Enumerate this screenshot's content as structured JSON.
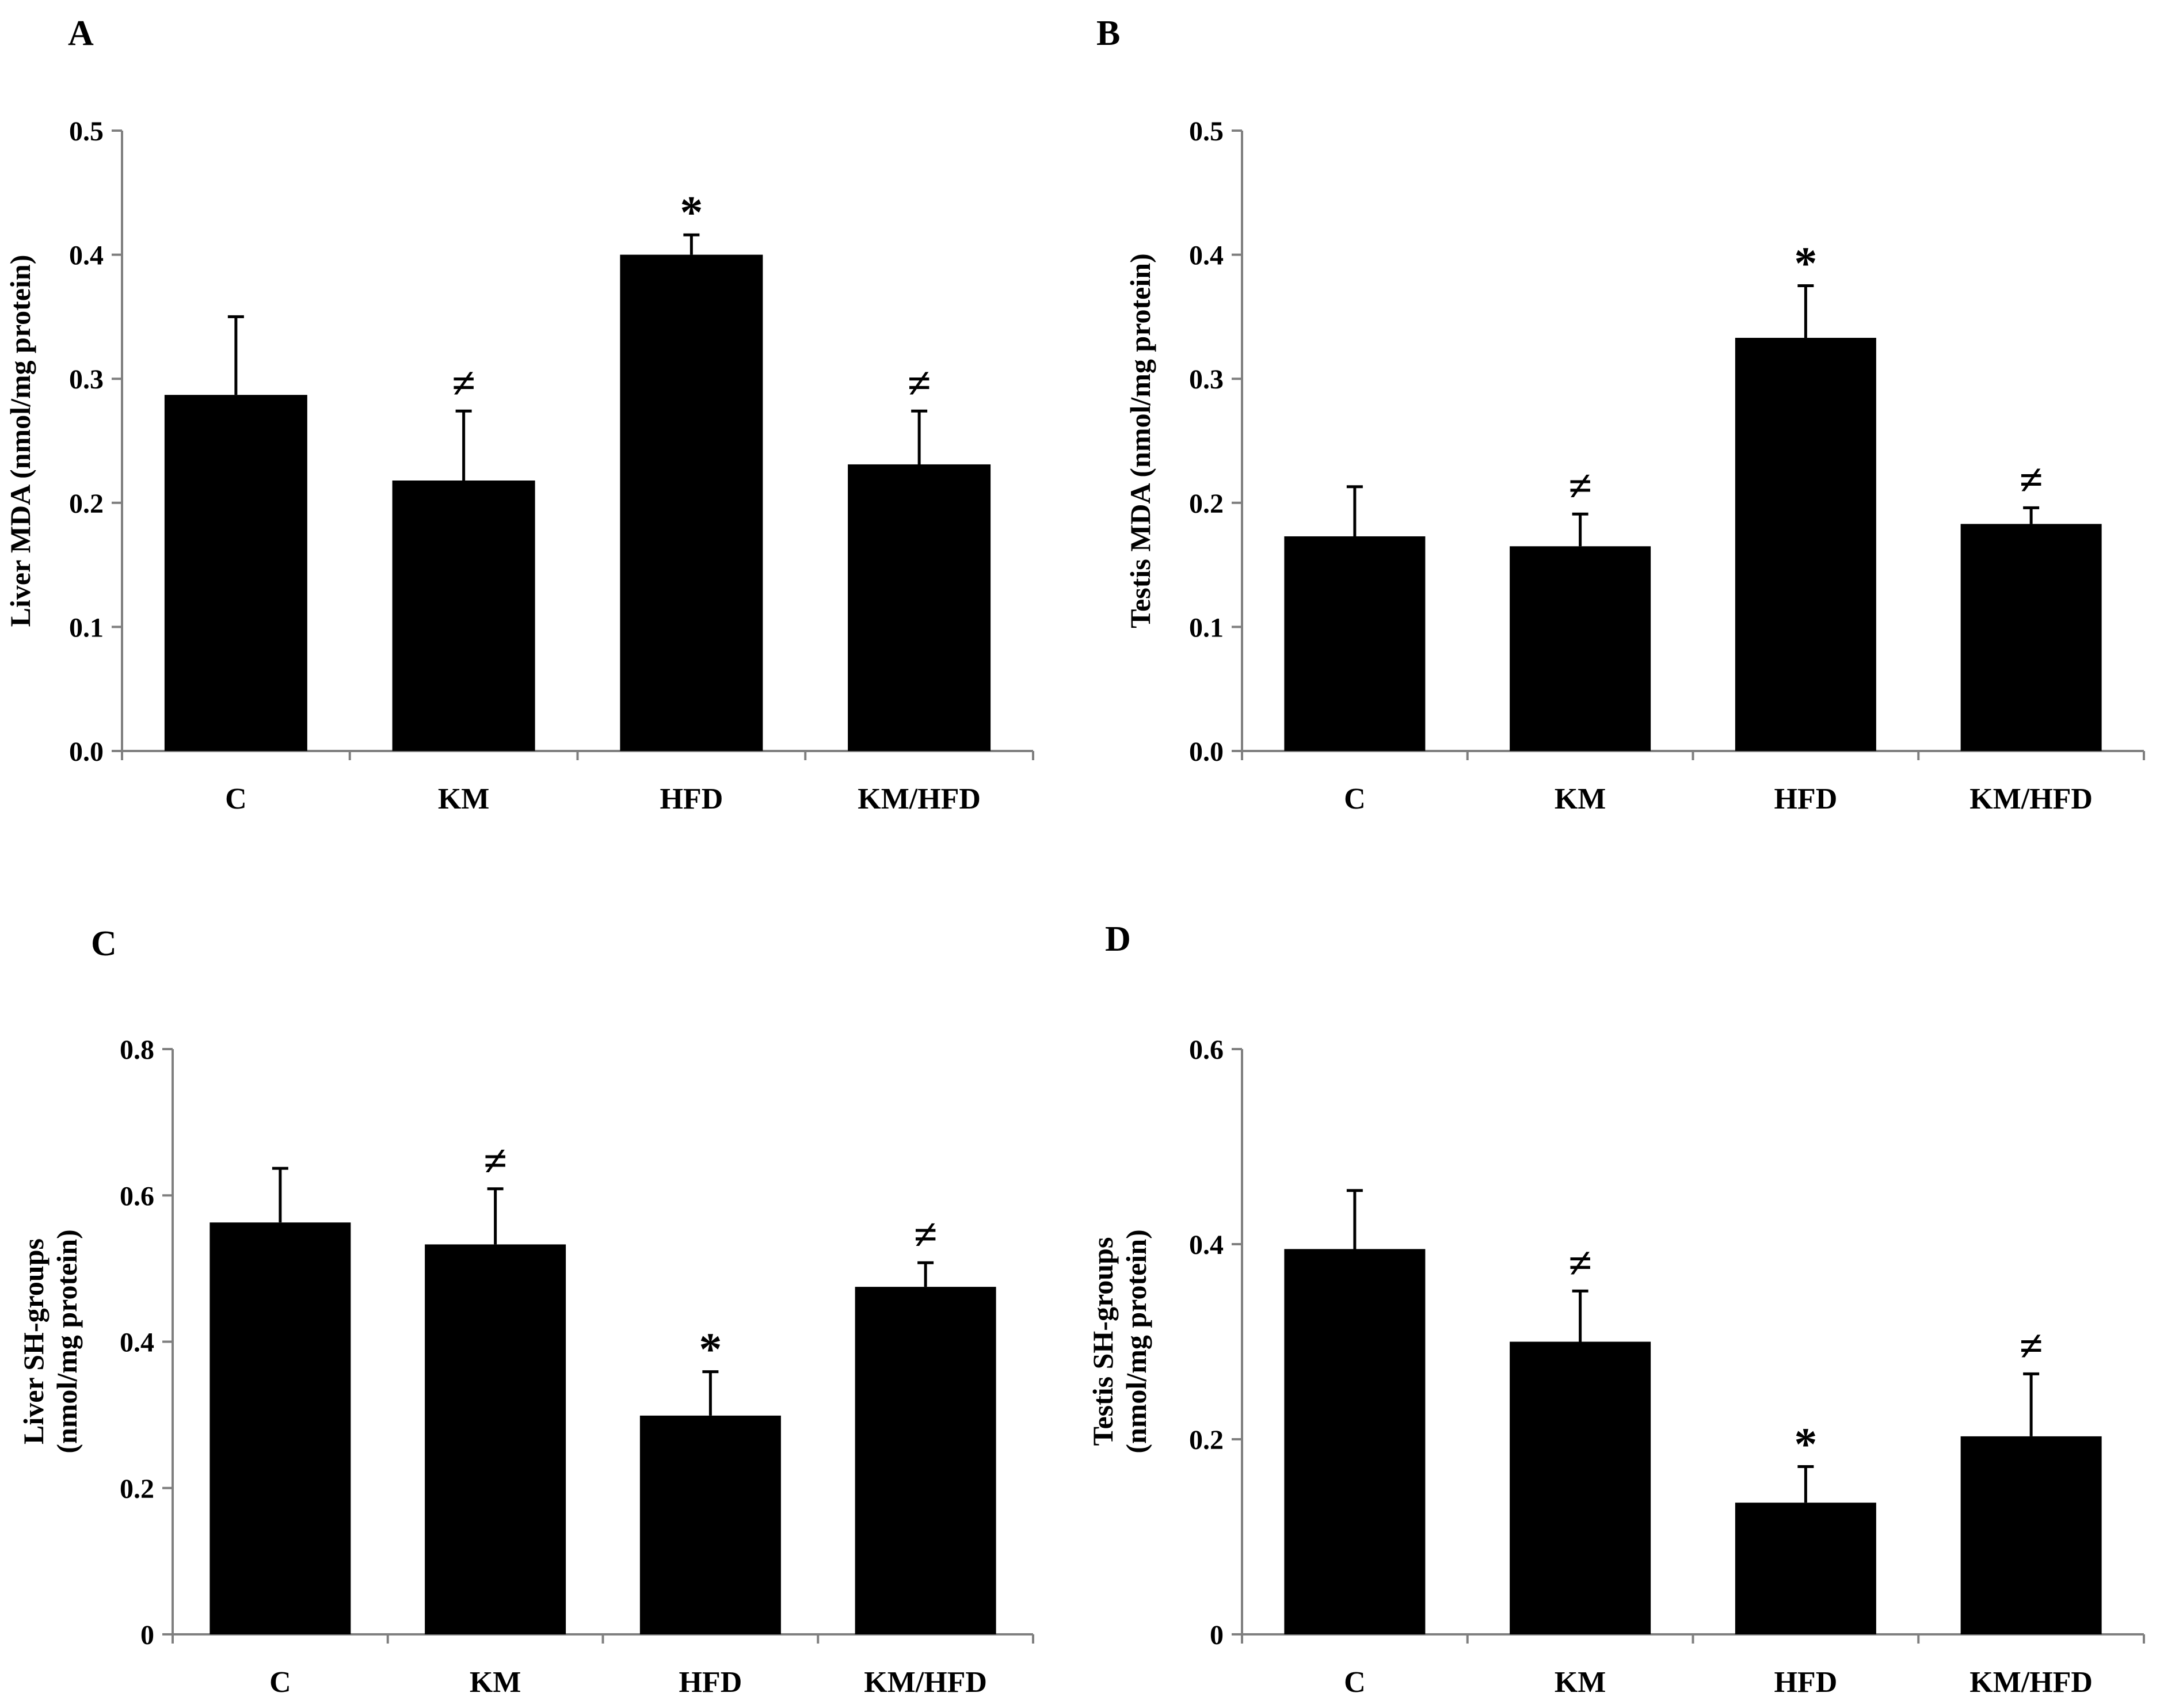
{
  "colors": {
    "bar": "#000000",
    "axis": "#7f7f7f",
    "text": "#000000",
    "background": "#ffffff"
  },
  "chart_data": [
    {
      "panel": "A",
      "type": "bar",
      "categories": [
        "C",
        "KM",
        "HFD",
        "KM/HFD"
      ],
      "values": [
        0.287,
        0.218,
        0.4,
        0.231
      ],
      "errors": [
        0.063,
        0.056,
        0.016,
        0.043
      ],
      "significance": [
        "",
        "≠",
        "*",
        "≠"
      ],
      "ylabel_lines": [
        "Liver MDA (nmol/mg protein)"
      ],
      "ylim": [
        0,
        0.5
      ],
      "yticks": [
        0,
        0.1,
        0.2,
        0.3,
        0.4,
        0.5
      ],
      "ytick_labels": [
        "0.0",
        "0.1",
        "0.2",
        "0.3",
        "0.4",
        "0.5"
      ]
    },
    {
      "panel": "B",
      "type": "bar",
      "categories": [
        "C",
        "KM",
        "HFD",
        "KM/HFD"
      ],
      "values": [
        0.173,
        0.165,
        0.333,
        0.183
      ],
      "errors": [
        0.04,
        0.026,
        0.042,
        0.013
      ],
      "significance": [
        "",
        "≠",
        "*",
        "≠"
      ],
      "ylabel_lines": [
        "Testis MDA (nmol/mg protein)"
      ],
      "ylim": [
        0,
        0.5
      ],
      "yticks": [
        0,
        0.1,
        0.2,
        0.3,
        0.4,
        0.5
      ],
      "ytick_labels": [
        "0.0",
        "0.1",
        "0.2",
        "0.3",
        "0.4",
        "0.5"
      ]
    },
    {
      "panel": "C",
      "type": "bar",
      "categories": [
        "C",
        "KM",
        "HFD",
        "KM/HFD"
      ],
      "values": [
        0.563,
        0.533,
        0.299,
        0.475
      ],
      "errors": [
        0.074,
        0.076,
        0.06,
        0.033
      ],
      "significance": [
        "",
        "≠",
        "*",
        "≠"
      ],
      "ylabel_lines": [
        "Liver SH-groups",
        "(nmol/mg protein)"
      ],
      "ylim": [
        0,
        0.8
      ],
      "yticks": [
        0,
        0.2,
        0.4,
        0.6,
        0.8
      ],
      "ytick_labels": [
        "0",
        "0.2",
        "0.4",
        "0.6",
        "0.8"
      ]
    },
    {
      "panel": "D",
      "type": "bar",
      "categories": [
        "C",
        "KM",
        "HFD",
        "KM/HFD"
      ],
      "values": [
        0.395,
        0.3,
        0.135,
        0.203
      ],
      "errors": [
        0.06,
        0.052,
        0.037,
        0.064
      ],
      "significance": [
        "",
        "≠",
        "*",
        "≠"
      ],
      "ylabel_lines": [
        "Testis SH-groups",
        "(nmol/mg protein)"
      ],
      "ylim": [
        0,
        0.6
      ],
      "yticks": [
        0,
        0.2,
        0.4,
        0.6
      ],
      "ytick_labels": [
        "0",
        "0.2",
        "0.4",
        "0.6"
      ]
    }
  ]
}
